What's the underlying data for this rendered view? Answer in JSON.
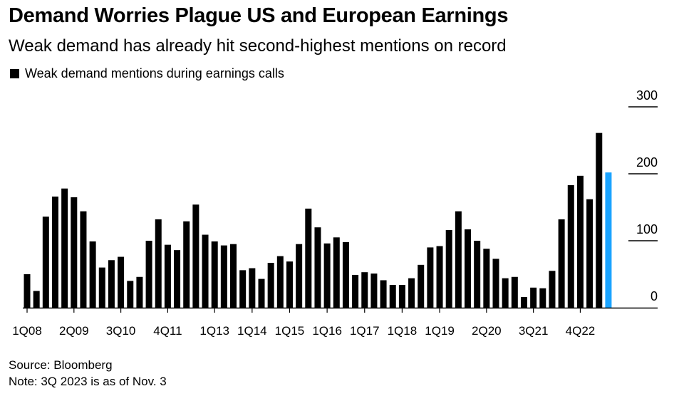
{
  "chart_data": {
    "type": "bar",
    "title": "Demand Worries Plague US and European Earnings",
    "subtitle": "Weak demand has already hit second-highest mentions on record",
    "legend": "Weak demand mentions during earnings calls",
    "legend_position": "top-left",
    "ylim": [
      0,
      300
    ],
    "yticks": [
      0,
      100,
      200,
      300
    ],
    "xtick_labels": [
      "1Q08",
      "2Q09",
      "3Q10",
      "4Q11",
      "1Q13",
      "1Q14",
      "1Q15",
      "1Q16",
      "1Q17",
      "1Q18",
      "1Q19",
      "2Q20",
      "3Q21",
      "4Q22"
    ],
    "xtick_indices": [
      0,
      5,
      10,
      15,
      20,
      24,
      28,
      32,
      36,
      40,
      44,
      49,
      54,
      59
    ],
    "values": [
      50,
      25,
      136,
      166,
      178,
      165,
      144,
      99,
      60,
      71,
      76,
      40,
      46,
      100,
      132,
      94,
      86,
      129,
      154,
      109,
      99,
      93,
      95,
      56,
      59,
      43,
      67,
      77,
      69,
      95,
      148,
      120,
      96,
      105,
      98,
      49,
      53,
      51,
      41,
      34,
      34,
      44,
      64,
      90,
      92,
      116,
      144,
      117,
      100,
      88,
      73,
      44,
      46,
      16,
      30,
      29,
      55,
      132,
      183,
      197,
      162,
      261,
      202
    ],
    "highlight_index": 62,
    "bar_color": "#000000",
    "highlight_color": "#1aa3ff",
    "grid": false,
    "source": "Source: Bloomberg",
    "note": "Note: 3Q 2023 is as of Nov. 3"
  }
}
